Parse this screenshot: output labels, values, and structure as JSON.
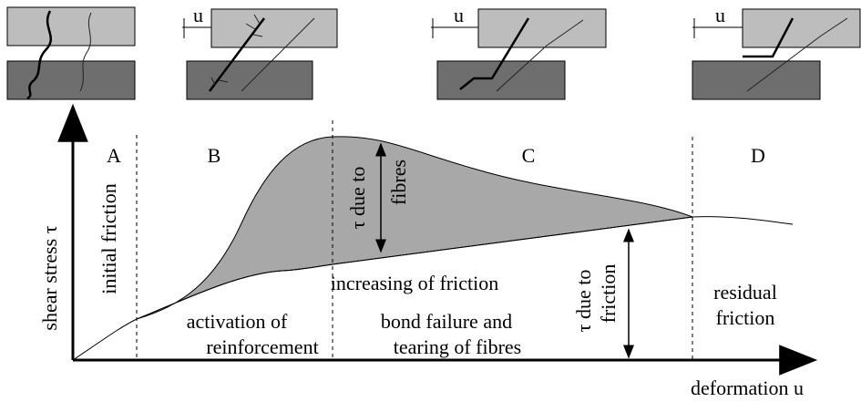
{
  "displacement_labels": [
    "u",
    "u",
    "u"
  ],
  "regions": [
    "A",
    "B",
    "C",
    "D"
  ],
  "y_axis_label": "shear stress τ",
  "x_axis_label": "deformation u",
  "annotations": {
    "initial_friction": "initial friction",
    "tau_fibres": [
      "τ due to",
      "fibres"
    ],
    "increasing_friction": "increasing of friction",
    "activation": [
      "activation of",
      "reinforcement"
    ],
    "bond_failure": [
      "bond failure and",
      "tearing of fibres"
    ],
    "tau_friction": [
      "τ due to",
      "friction"
    ],
    "residual": [
      "residual",
      "friction"
    ]
  }
}
